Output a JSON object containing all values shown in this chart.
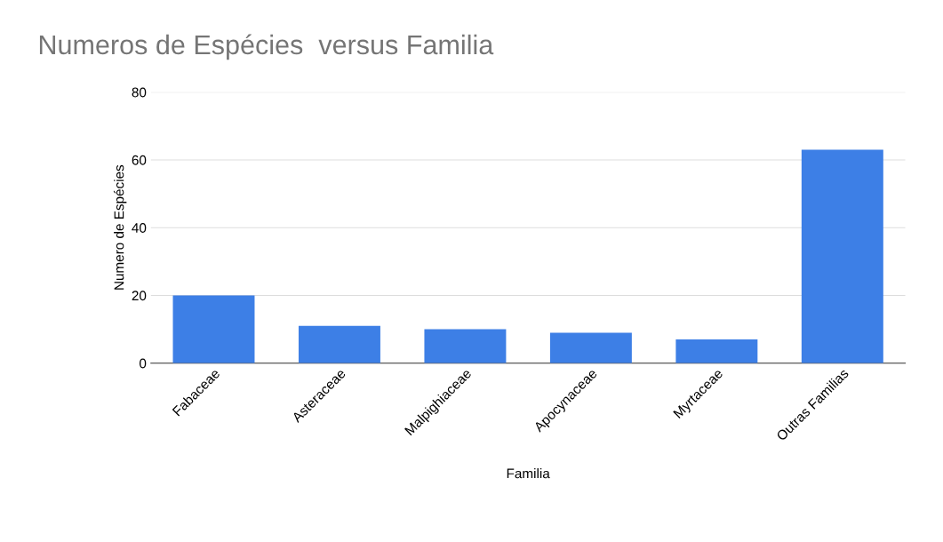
{
  "chart_data": {
    "type": "bar",
    "title": "Numeros de Espécies  versus Familia",
    "xlabel": "Familia",
    "ylabel": "Numero de Espécies",
    "categories": [
      "Fabaceae",
      "Asteraceae",
      "Malpighiaceae",
      "Apocynaceae",
      "Myrtaceae",
      "Outras Familias"
    ],
    "values": [
      20,
      11,
      10,
      9,
      7,
      63
    ],
    "color": "#3d7fe6",
    "ylim": [
      0,
      80
    ],
    "yticks": [
      0,
      20,
      40,
      60,
      80
    ],
    "grid": "y",
    "legend": false
  }
}
